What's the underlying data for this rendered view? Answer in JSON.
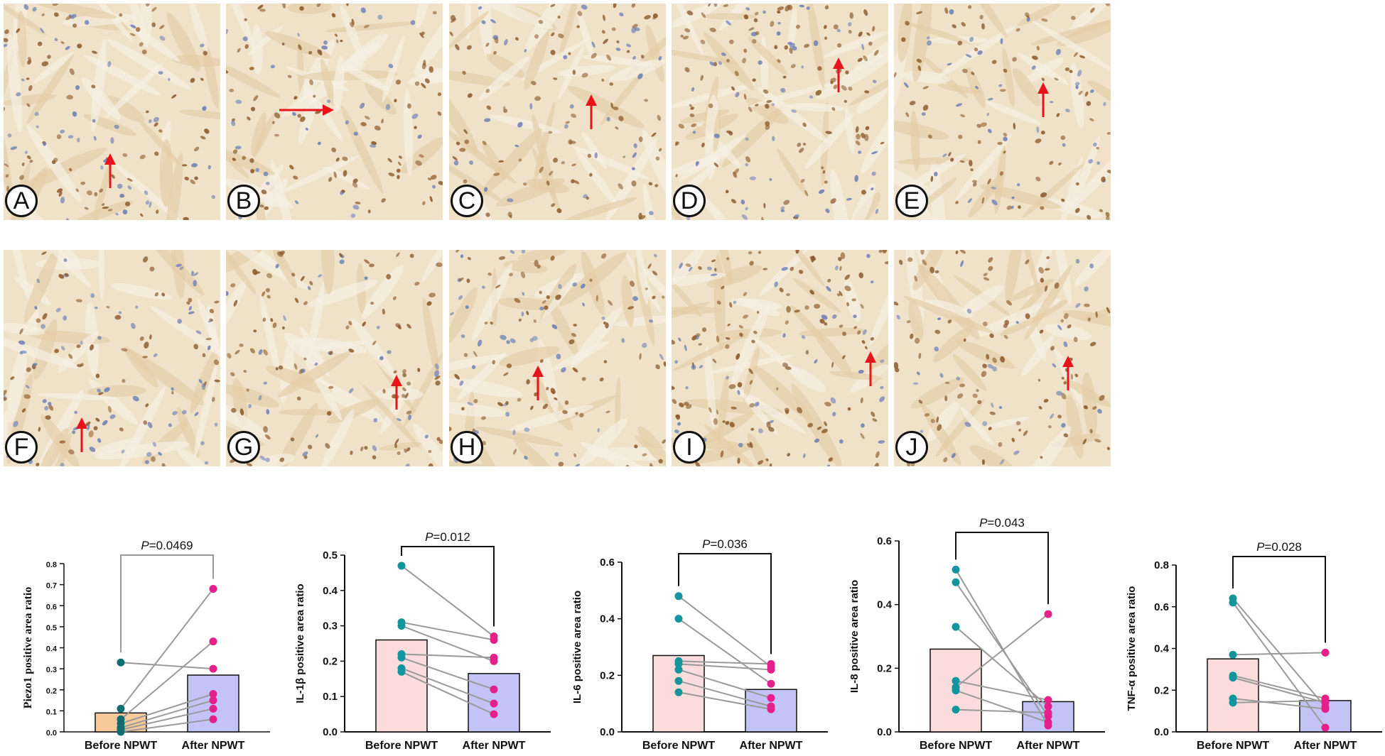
{
  "colors": {
    "tissue_base": "#efe2c8",
    "stain_brown": "#8a5a2b",
    "stain_blue": "#6d7fb8",
    "arrow_red": "#e8141b",
    "before_bar": "#fbdcdc",
    "before_bar_piezo": "#f7c99b",
    "after_bar": "#c3c3f5",
    "before_dot": "#12959c",
    "before_dot_piezo": "#0e6f73",
    "after_dot": "#e6208a",
    "line_gray": "#9a9a9a"
  },
  "panels": [
    {
      "label": "A",
      "arrow": "up"
    },
    {
      "label": "B",
      "arrow": "right"
    },
    {
      "label": "C",
      "arrow": "up"
    },
    {
      "label": "D",
      "arrow": "up"
    },
    {
      "label": "E",
      "arrow": "up"
    },
    {
      "label": "F",
      "arrow": "up"
    },
    {
      "label": "G",
      "arrow": "up"
    },
    {
      "label": "H",
      "arrow": "up"
    },
    {
      "label": "I",
      "arrow": "up"
    },
    {
      "label": "J",
      "arrow": "up"
    }
  ],
  "chart_data": [
    {
      "type": "bar",
      "ylabel": "Piezo1 positive area ratio",
      "categories": [
        "Before NPWT",
        "After NPWT"
      ],
      "ylim": [
        0,
        0.8
      ],
      "yticks": [
        "0.0",
        "0.1",
        "0.2",
        "0.3",
        "0.4",
        "0.5",
        "0.6",
        "0.7",
        "0.8"
      ],
      "p_label": "P",
      "p_value": "=0.0469",
      "bar_means": [
        0.09,
        0.27
      ],
      "pairs": [
        [
          0.33,
          0.3
        ],
        [
          0.11,
          0.68
        ],
        [
          0.06,
          0.43
        ],
        [
          0.04,
          0.18
        ],
        [
          0.02,
          0.15
        ],
        [
          0.01,
          0.11
        ],
        [
          0.0,
          0.06
        ]
      ]
    },
    {
      "type": "bar",
      "ylabel": "IL-1β positive area ratio",
      "categories": [
        "Before NPWT",
        "After NPWT"
      ],
      "ylim": [
        0,
        0.5
      ],
      "yticks": [
        "0.0",
        "0.1",
        "0.2",
        "0.3",
        "0.4",
        "0.5"
      ],
      "p_label": "P",
      "p_value": "=0.012",
      "bar_means": [
        0.26,
        0.165
      ],
      "pairs": [
        [
          0.47,
          0.27
        ],
        [
          0.31,
          0.26
        ],
        [
          0.3,
          0.2
        ],
        [
          0.22,
          0.21
        ],
        [
          0.21,
          0.12
        ],
        [
          0.18,
          0.08
        ],
        [
          0.17,
          0.05
        ]
      ]
    },
    {
      "type": "bar",
      "ylabel": "IL-6 positive area ratio",
      "categories": [
        "Before NPWT",
        "After NPWT"
      ],
      "ylim": [
        0,
        0.6
      ],
      "yticks": [
        "0.0",
        "0.2",
        "0.4",
        "0.6"
      ],
      "p_label": "P",
      "p_value": "=0.036",
      "bar_means": [
        0.27,
        0.15
      ],
      "pairs": [
        [
          0.48,
          0.23
        ],
        [
          0.4,
          0.17
        ],
        [
          0.25,
          0.24
        ],
        [
          0.24,
          0.22
        ],
        [
          0.22,
          0.12
        ],
        [
          0.18,
          0.09
        ],
        [
          0.14,
          0.08
        ]
      ]
    },
    {
      "type": "bar",
      "ylabel": "IL-8 positive area ratio",
      "categories": [
        "Before NPWT",
        "After NPWT"
      ],
      "ylim": [
        0,
        0.6
      ],
      "yticks": [
        "0.0",
        "0.2",
        "0.4",
        "0.6"
      ],
      "p_label": "P",
      "p_value": "=0.043",
      "bar_means": [
        0.26,
        0.095
      ],
      "pairs": [
        [
          0.51,
          0.02
        ],
        [
          0.47,
          0.05
        ],
        [
          0.33,
          0.08
        ],
        [
          0.16,
          0.1
        ],
        [
          0.14,
          0.37
        ],
        [
          0.13,
          0.03
        ],
        [
          0.07,
          0.06
        ]
      ]
    },
    {
      "type": "bar",
      "ylabel": "TNF-α positive area ratio",
      "categories": [
        "Before NPWT",
        "After NPWT"
      ],
      "ylim": [
        0,
        0.8
      ],
      "yticks": [
        "0.0",
        "0.2",
        "0.4",
        "0.6",
        "0.8"
      ],
      "p_label": "P",
      "p_value": "=0.028",
      "bar_means": [
        0.35,
        0.15
      ],
      "pairs": [
        [
          0.64,
          0.12
        ],
        [
          0.62,
          0.02
        ],
        [
          0.37,
          0.38
        ],
        [
          0.27,
          0.16
        ],
        [
          0.26,
          0.14
        ],
        [
          0.16,
          0.11
        ],
        [
          0.14,
          0.15
        ]
      ]
    }
  ]
}
